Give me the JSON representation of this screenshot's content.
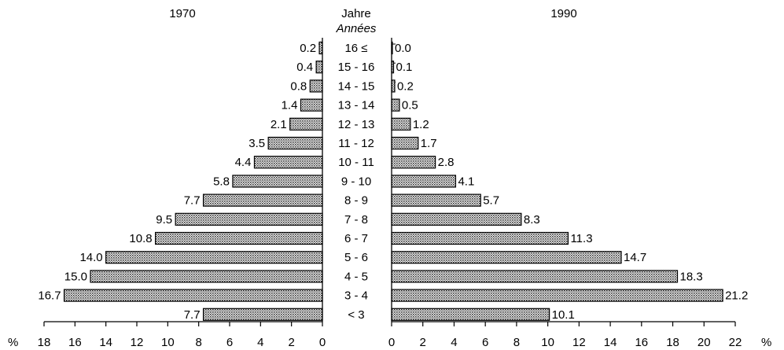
{
  "chart_data": {
    "type": "bar",
    "layout": "back-to-back horizontal bars",
    "center_header": {
      "line1": "Jahre",
      "line2": "Années"
    },
    "categories": [
      "16 ≤",
      "15 - 16",
      "14 - 15",
      "13 - 14",
      "12 - 13",
      "11 - 12",
      "10 - 11",
      "9 - 10",
      "8 - 9",
      "7 - 8",
      "6 - 7",
      "5 - 6",
      "4 - 5",
      "3 - 4",
      "< 3"
    ],
    "series": [
      {
        "name": "1970",
        "side": "left",
        "values": [
          0.2,
          0.4,
          0.8,
          1.4,
          2.1,
          3.5,
          4.4,
          5.8,
          7.7,
          9.5,
          10.8,
          14.0,
          15.0,
          16.7,
          7.7
        ],
        "labels": [
          "0.2",
          "0.4",
          "0.8",
          "1.4",
          "2.1",
          "3.5",
          "4.4",
          "5.8",
          "7.7",
          "9.5",
          "10.8",
          "14.0",
          "15.0",
          "16.7",
          "7.7"
        ],
        "xlim": [
          0,
          18
        ],
        "ticks": [
          "0",
          "2",
          "4",
          "6",
          "8",
          "10",
          "12",
          "14",
          "16",
          "18"
        ],
        "unit": "%"
      },
      {
        "name": "1990",
        "side": "right",
        "values": [
          0.0,
          0.1,
          0.2,
          0.5,
          1.2,
          1.7,
          2.8,
          4.1,
          5.7,
          8.3,
          11.3,
          14.7,
          18.3,
          21.2,
          10.1
        ],
        "labels": [
          "0.0",
          "0.1",
          "0.2",
          "0.5",
          "1.2",
          "1.7",
          "2.8",
          "4.1",
          "5.7",
          "8.3",
          "11.3",
          "14.7",
          "18.3",
          "21.2",
          "10.1"
        ],
        "xlim": [
          0,
          22
        ],
        "ticks": [
          "0",
          "2",
          "4",
          "6",
          "8",
          "10",
          "12",
          "14",
          "16",
          "18",
          "20",
          "22"
        ],
        "unit": "%"
      }
    ],
    "bar_fill": "#b8b8b8",
    "bar_stroke": "#000000"
  }
}
